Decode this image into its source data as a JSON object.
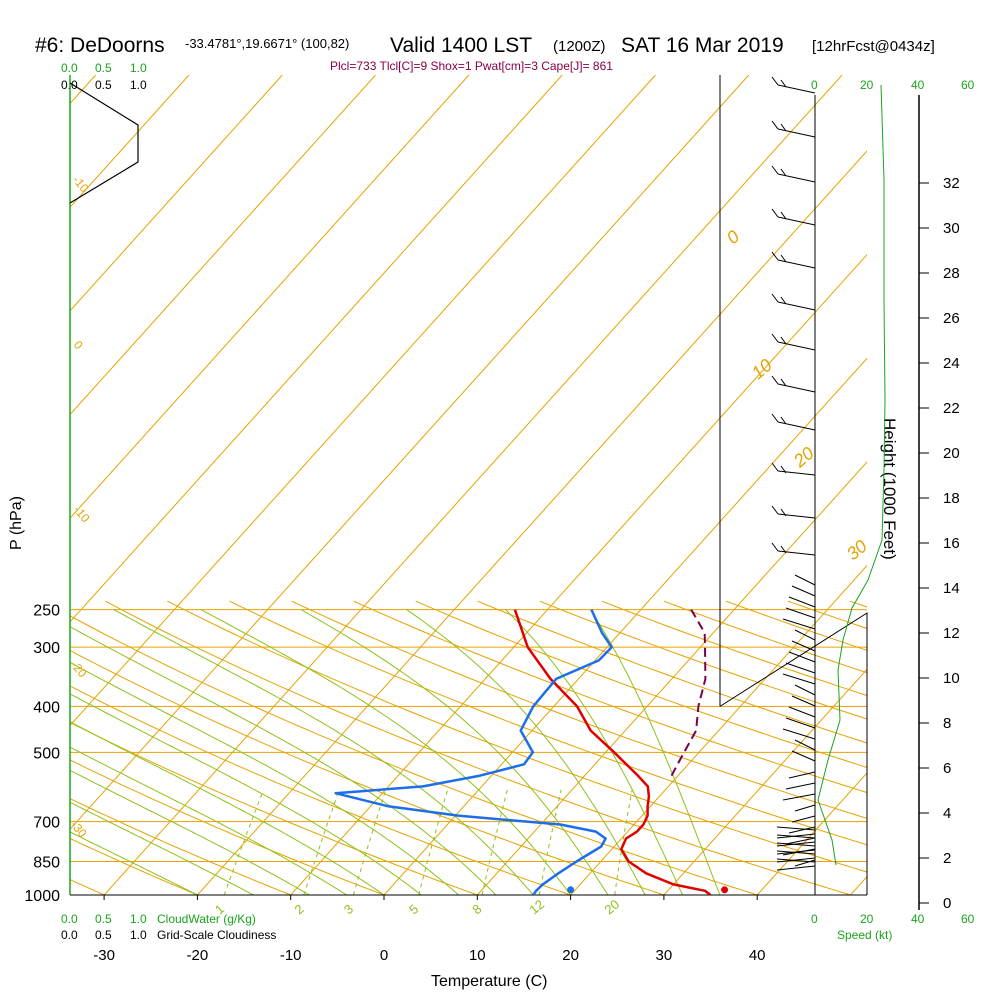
{
  "header": {
    "station": "#6: DeDoorns",
    "coords": "-33.4781°,19.6671° (100,82)",
    "valid": "Valid 1400 LST",
    "zulu": "(1200Z)",
    "date": "SAT 16 Mar 2019",
    "forecast": "[12hrFcst@0434z]",
    "indices": "Plcl=733 Tlcl[C]=9 Shox=1 Pwat[cm]=3 Cape[J]= 861"
  },
  "labels": {
    "cloud_ticks": [
      "0.0",
      "0.5",
      "1.0"
    ],
    "cloudwater": "CloudWater (g/Kg)",
    "cloudiness": "Grid-Scale Cloudiness",
    "speed_ticks": [
      "0",
      "20",
      "40",
      "60"
    ],
    "speed": "Speed (kt)"
  },
  "colors": {
    "isotherm": "#e6a300",
    "mixing": "#8cc21a",
    "temperature": "#e00000",
    "dewpoint": "#1e6ee8",
    "parcel": "#7a0050",
    "green": "#1aa51a"
  },
  "chart_data": {
    "type": "skew-t",
    "xlabel": "Temperature (C)",
    "ylabel": "P (hPa)",
    "y2label": "Height (1000 Feet)",
    "xticks": [
      -30,
      -20,
      -10,
      0,
      10,
      20,
      30,
      40
    ],
    "yticks": [
      250,
      300,
      400,
      500,
      700,
      850,
      1000
    ],
    "height_ticks": [
      0,
      2,
      4,
      6,
      8,
      10,
      12,
      14,
      16,
      18,
      20,
      22,
      24,
      26,
      28,
      30,
      32
    ],
    "mixing_ratio_labels": [
      "1",
      "2",
      "3",
      "5",
      "8",
      "12",
      "20"
    ],
    "isotherm_labels_right": [
      "0",
      "10",
      "20",
      "30"
    ],
    "isotherm_labels_left": [
      "-10",
      "0",
      "-10",
      "-20",
      "-30"
    ],
    "surface_temperature": 36,
    "surface_dewpoint": 19.5,
    "series": [
      {
        "name": "temperature",
        "points": [
          [
            1000,
            35
          ],
          [
            980,
            34
          ],
          [
            950,
            30
          ],
          [
            900,
            26
          ],
          [
            850,
            23
          ],
          [
            800,
            21
          ],
          [
            760,
            20.5
          ],
          [
            735,
            21
          ],
          [
            710,
            21
          ],
          [
            680,
            20.6
          ],
          [
            650,
            19.7
          ],
          [
            620,
            18.9
          ],
          [
            590,
            17.8
          ],
          [
            560,
            15.7
          ],
          [
            500,
            10.9
          ],
          [
            450,
            6.3
          ],
          [
            400,
            2.5
          ],
          [
            350,
            -3
          ],
          [
            300,
            -8.5
          ],
          [
            250,
            -13.5
          ]
        ]
      },
      {
        "name": "dewpoint",
        "points": [
          [
            1000,
            16
          ],
          [
            980,
            15.9
          ],
          [
            950,
            16
          ],
          [
            900,
            16.6
          ],
          [
            850,
            17.4
          ],
          [
            790,
            18.6
          ],
          [
            760,
            18.3
          ],
          [
            735,
            16.6
          ],
          [
            710,
            12.1
          ],
          [
            690,
            4.2
          ],
          [
            680,
            0.3
          ],
          [
            650,
            -8.1
          ],
          [
            610,
            -15
          ],
          [
            590,
            -6.3
          ],
          [
            560,
            -1.2
          ],
          [
            530,
            2.4
          ],
          [
            500,
            2.2
          ],
          [
            450,
            -1.2
          ],
          [
            400,
            -2.2
          ],
          [
            350,
            -2.4
          ],
          [
            320,
            0.4
          ],
          [
            300,
            0.5
          ],
          [
            280,
            -1.9
          ],
          [
            250,
            -5.3
          ]
        ]
      },
      {
        "name": "parcel",
        "points": [
          [
            560,
            19.3
          ],
          [
            500,
            18.4
          ],
          [
            450,
            17.6
          ],
          [
            400,
            15.5
          ],
          [
            350,
            13.6
          ],
          [
            300,
            10.5
          ],
          [
            280,
            9.1
          ],
          [
            250,
            5.4
          ]
        ]
      }
    ]
  }
}
